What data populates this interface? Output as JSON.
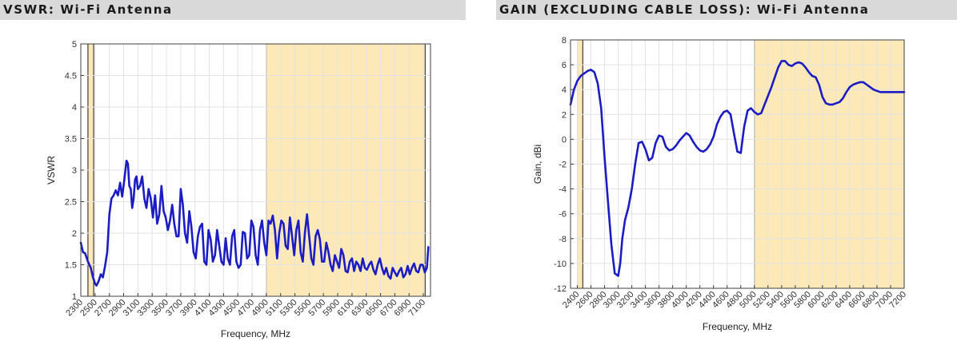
{
  "colors": {
    "band_fill": "#fde9b8",
    "band_edge": "#1a1a1a",
    "curve": "#1c1cc4",
    "curve_in_band": "#4a3cb0",
    "grid": "#e3e3e3",
    "title_bar": "#d9d9d9"
  },
  "chart_data": [
    {
      "type": "line",
      "title": "VSWR: Wi-Fi Antenna",
      "xlabel": "Frequency, MHz",
      "ylabel": "VSWR",
      "xlim": [
        2300,
        7200
      ],
      "ylim": [
        1,
        5
      ],
      "grid": true,
      "xticks": [
        2300,
        2500,
        2700,
        2900,
        3100,
        3300,
        3500,
        3700,
        3900,
        4100,
        4300,
        4500,
        4700,
        4900,
        5100,
        5300,
        5500,
        5700,
        5900,
        6100,
        6300,
        6500,
        6700,
        6900,
        7100
      ],
      "yticks": [
        1,
        1.5,
        2,
        2.5,
        3,
        3.5,
        4,
        4.5,
        5
      ],
      "ytick_labels": [
        "1",
        "1.5",
        "2",
        "2.5",
        "3",
        "3.5",
        "4",
        "4.5",
        "5"
      ],
      "bands": [
        [
          2400,
          2480
        ],
        [
          4900,
          7125
        ]
      ],
      "series": [
        {
          "x": [
            2300,
            2330,
            2360,
            2400,
            2440,
            2470,
            2500,
            2520,
            2550,
            2580,
            2610,
            2640,
            2670,
            2700,
            2730,
            2760,
            2790,
            2820,
            2850,
            2880,
            2910,
            2940,
            2960,
            2980,
            3000,
            3020,
            3040,
            3060,
            3080,
            3100,
            3130,
            3160,
            3190,
            3220,
            3250,
            3280,
            3310,
            3340,
            3370,
            3400,
            3430,
            3460,
            3490,
            3520,
            3550,
            3580,
            3610,
            3640,
            3670,
            3700,
            3730,
            3760,
            3790,
            3820,
            3850,
            3880,
            3910,
            3940,
            3970,
            4000,
            4030,
            4060,
            4090,
            4120,
            4150,
            4180,
            4210,
            4240,
            4270,
            4300,
            4330,
            4360,
            4390,
            4420,
            4450,
            4480,
            4510,
            4540,
            4570,
            4600,
            4630,
            4660,
            4690,
            4720,
            4750,
            4780,
            4810,
            4840,
            4870,
            4900,
            4930,
            4960,
            4990,
            5020,
            5050,
            5080,
            5110,
            5140,
            5170,
            5200,
            5230,
            5260,
            5290,
            5320,
            5350,
            5380,
            5410,
            5440,
            5470,
            5500,
            5530,
            5560,
            5590,
            5620,
            5650,
            5680,
            5710,
            5740,
            5770,
            5800,
            5830,
            5860,
            5890,
            5920,
            5950,
            5980,
            6010,
            6040,
            6070,
            6100,
            6130,
            6160,
            6190,
            6220,
            6250,
            6280,
            6310,
            6340,
            6370,
            6400,
            6430,
            6460,
            6490,
            6520,
            6550,
            6580,
            6610,
            6640,
            6670,
            6700,
            6730,
            6760,
            6790,
            6820,
            6850,
            6880,
            6910,
            6940,
            6970,
            7000,
            7030,
            7060,
            7090,
            7120,
            7150,
            7170
          ],
          "y": [
            1.85,
            1.7,
            1.68,
            1.55,
            1.45,
            1.3,
            1.2,
            1.17,
            1.24,
            1.35,
            1.3,
            1.48,
            1.7,
            2.3,
            2.55,
            2.6,
            2.68,
            2.6,
            2.8,
            2.58,
            2.85,
            3.15,
            3.1,
            2.75,
            2.7,
            2.4,
            2.55,
            2.85,
            2.9,
            2.7,
            2.75,
            2.9,
            2.55,
            2.4,
            2.7,
            2.55,
            2.25,
            2.6,
            2.15,
            2.3,
            2.75,
            2.35,
            2.25,
            2.05,
            2.2,
            2.45,
            2.15,
            1.95,
            1.95,
            2.7,
            2.45,
            2.0,
            1.85,
            2.35,
            2.1,
            1.7,
            1.6,
            1.95,
            2.1,
            2.15,
            1.55,
            1.5,
            2.05,
            1.9,
            1.55,
            1.65,
            2.05,
            1.8,
            1.55,
            1.5,
            1.92,
            1.6,
            1.5,
            1.95,
            2.05,
            1.55,
            1.45,
            1.5,
            2.02,
            2.0,
            1.6,
            1.65,
            2.2,
            2.1,
            1.65,
            1.5,
            2.05,
            2.2,
            1.85,
            1.65,
            2.2,
            2.15,
            2.28,
            2.05,
            1.6,
            2.0,
            2.2,
            2.15,
            1.8,
            1.75,
            2.25,
            1.95,
            1.65,
            2.05,
            2.2,
            1.7,
            1.55,
            2.0,
            2.3,
            1.95,
            1.6,
            1.5,
            1.95,
            2.05,
            1.9,
            1.55,
            1.55,
            1.85,
            1.7,
            1.5,
            1.4,
            1.65,
            1.55,
            1.45,
            1.75,
            1.65,
            1.4,
            1.38,
            1.55,
            1.6,
            1.4,
            1.55,
            1.5,
            1.4,
            1.6,
            1.45,
            1.42,
            1.5,
            1.55,
            1.42,
            1.35,
            1.5,
            1.6,
            1.45,
            1.35,
            1.45,
            1.32,
            1.28,
            1.45,
            1.38,
            1.32,
            1.4,
            1.45,
            1.3,
            1.35,
            1.48,
            1.35,
            1.45,
            1.52,
            1.4,
            1.38,
            1.5,
            1.5,
            1.38,
            1.45,
            1.78
          ]
        }
      ]
    },
    {
      "type": "line",
      "title": "GAIN (EXCLUDING CABLE LOSS): Wi-Fi Antenna",
      "xlabel": "Frequency, MHz",
      "ylabel": "Gain, dBi",
      "xlim": [
        2300,
        7200
      ],
      "ylim": [
        -12,
        8
      ],
      "grid": true,
      "xticks": [
        2400,
        2600,
        2800,
        3000,
        3200,
        3400,
        3600,
        3800,
        4000,
        4200,
        4400,
        4600,
        4800,
        5000,
        5200,
        5400,
        5600,
        5800,
        6000,
        6200,
        6400,
        6600,
        6800,
        7000,
        7200
      ],
      "yticks": [
        -12,
        -10,
        -8,
        -6,
        -4,
        -2,
        0,
        2,
        4,
        6,
        8
      ],
      "ytick_labels": [
        "-12",
        "-10",
        "-8",
        "-6",
        "-4",
        "-2",
        "0",
        "2",
        "4",
        "6",
        "8"
      ],
      "bands": [
        [
          2400,
          2480
        ],
        [
          5000,
          7200
        ]
      ],
      "series": [
        {
          "x": [
            2300,
            2350,
            2400,
            2450,
            2500,
            2550,
            2600,
            2650,
            2700,
            2750,
            2800,
            2850,
            2900,
            2950,
            3000,
            3030,
            3060,
            3100,
            3150,
            3200,
            3250,
            3300,
            3350,
            3400,
            3450,
            3500,
            3550,
            3600,
            3650,
            3700,
            3750,
            3800,
            3850,
            3900,
            3950,
            4000,
            4050,
            4100,
            4150,
            4200,
            4250,
            4300,
            4350,
            4400,
            4450,
            4500,
            4550,
            4600,
            4650,
            4700,
            4750,
            4800,
            4850,
            4900,
            4950,
            5000,
            5050,
            5100,
            5150,
            5200,
            5250,
            5300,
            5350,
            5400,
            5450,
            5500,
            5550,
            5600,
            5650,
            5700,
            5750,
            5800,
            5850,
            5900,
            5950,
            6000,
            6050,
            6100,
            6150,
            6200,
            6250,
            6300,
            6350,
            6400,
            6450,
            6500,
            6550,
            6600,
            6650,
            6700,
            6750,
            6800,
            6850,
            6900,
            6950,
            7000,
            7050,
            7100,
            7150,
            7200
          ],
          "y": [
            2.8,
            4.0,
            4.7,
            5.1,
            5.3,
            5.5,
            5.6,
            5.4,
            4.5,
            2.5,
            -1.5,
            -5.0,
            -8.5,
            -10.8,
            -11.0,
            -10.0,
            -8.0,
            -6.5,
            -5.5,
            -4.0,
            -2.0,
            -0.3,
            -0.2,
            -0.8,
            -1.7,
            -1.5,
            -0.3,
            0.3,
            0.2,
            -0.6,
            -0.9,
            -0.8,
            -0.5,
            -0.1,
            0.2,
            0.5,
            0.3,
            -0.2,
            -0.6,
            -0.9,
            -1.0,
            -0.8,
            -0.4,
            0.2,
            1.2,
            1.8,
            2.2,
            2.3,
            2.0,
            0.5,
            -1.0,
            -1.1,
            1.0,
            2.3,
            2.5,
            2.2,
            2.0,
            2.1,
            2.8,
            3.5,
            4.2,
            5.0,
            5.8,
            6.3,
            6.3,
            6.0,
            5.9,
            6.1,
            6.2,
            6.1,
            5.8,
            5.4,
            5.1,
            5.0,
            4.4,
            3.4,
            2.9,
            2.8,
            2.8,
            2.9,
            3.0,
            3.3,
            3.8,
            4.2,
            4.4,
            4.5,
            4.6,
            4.6,
            4.4,
            4.2,
            4.0,
            3.9,
            3.8,
            3.8,
            3.8,
            3.8,
            3.8,
            3.8,
            3.8,
            3.8
          ]
        }
      ]
    }
  ]
}
